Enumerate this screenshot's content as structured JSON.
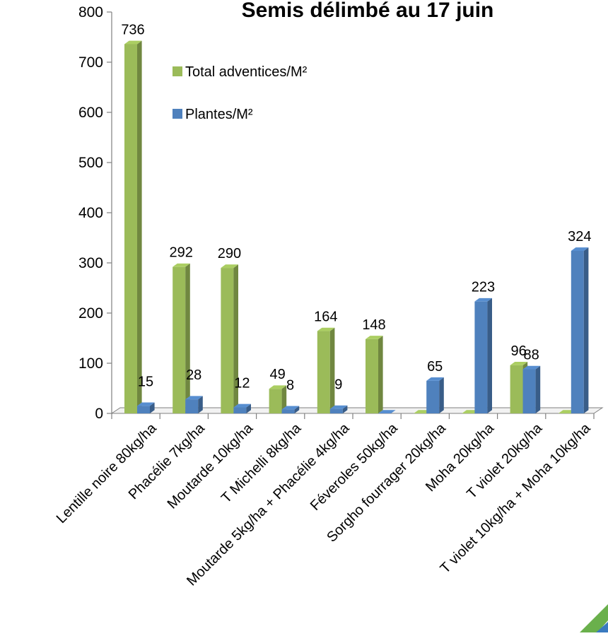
{
  "chart_data": {
    "type": "bar",
    "title": "Semis délimbé au 17 juin",
    "xlabel": "",
    "ylabel": "",
    "ylim": [
      0,
      800
    ],
    "yticks": [
      "0",
      "100",
      "200",
      "300",
      "400",
      "500",
      "600",
      "700",
      "800"
    ],
    "grid": false,
    "legend_position": "top-left",
    "style": "3d-clustered-columns",
    "categories": [
      "Lentille noire 80kg/ha",
      "Phacélie 7kg/ha",
      "Moutarde 10kg/ha",
      "T Michelli 8kg/ha",
      "Moutarde 5kg/ha + Phacélie 4kg/ha",
      "Féveroles 50kg/ha",
      "Sorgho fourrager 20kg/ha",
      "Moha 20kg/ha",
      "T violet 20kg/ha",
      "T violet 10kg/ha + Moha 10kg/ha"
    ],
    "series": [
      {
        "name": "Total adventices/M²",
        "color": "#9bbb59",
        "values": [
          736,
          292,
          290,
          49,
          164,
          148,
          0,
          0,
          96,
          0
        ],
        "labels": [
          "736",
          "292",
          "290",
          "49",
          "164",
          "148",
          "",
          "",
          "96",
          ""
        ]
      },
      {
        "name": "Plantes/M²",
        "color": "#4f81bd",
        "values": [
          15,
          28,
          12,
          8,
          9,
          0,
          65,
          223,
          88,
          324
        ],
        "labels": [
          "15",
          "28",
          "12",
          "8",
          "9",
          "",
          "65",
          "223",
          "88",
          "324"
        ]
      }
    ]
  }
}
